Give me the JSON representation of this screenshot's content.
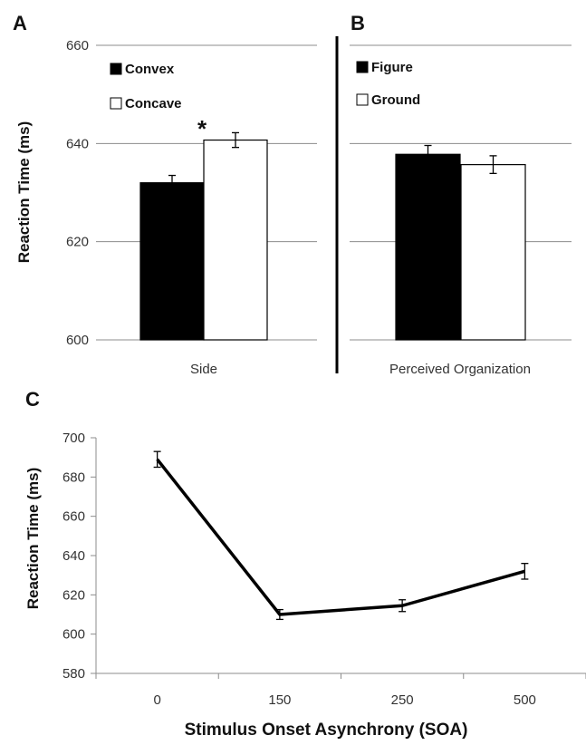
{
  "panels": {
    "a": "A",
    "b": "B",
    "c": "C"
  },
  "significance_marker": "*",
  "chart_data": [
    {
      "panel": "A",
      "type": "bar",
      "categories": [
        "Side"
      ],
      "series": [
        {
          "name": "Convex",
          "values": [
            632
          ],
          "error": [
            1.5
          ],
          "color": "#000000"
        },
        {
          "name": "Concave",
          "values": [
            640.7
          ],
          "error": [
            1.5
          ],
          "color": "#ffffff"
        }
      ],
      "ylabel": "Reaction Time (ms)",
      "ylim": [
        600,
        660
      ],
      "yticks": [
        600,
        620,
        640,
        660
      ],
      "grid": true,
      "legend": "top-left",
      "annotations": [
        "*"
      ]
    },
    {
      "panel": "B",
      "type": "bar",
      "categories": [
        "Perceived Organization"
      ],
      "series": [
        {
          "name": "Figure",
          "values": [
            637.8
          ],
          "error": [
            1.8
          ],
          "color": "#000000"
        },
        {
          "name": "Ground",
          "values": [
            635.7
          ],
          "error": [
            1.8
          ],
          "color": "#ffffff"
        }
      ],
      "ylim": [
        600,
        660
      ],
      "yticks": [
        600,
        620,
        640,
        660
      ],
      "grid": true,
      "legend": "top-left"
    },
    {
      "panel": "C",
      "type": "line",
      "categories": [
        "0",
        "150",
        "250",
        "500"
      ],
      "series": [
        {
          "values": [
            689,
            610,
            614.5,
            632
          ],
          "error": [
            4,
            2.5,
            3,
            4
          ],
          "color": "#000000"
        }
      ],
      "xlabel": "Stimulus Onset Asynchrony (SOA)",
      "ylabel": "Reaction Time (ms)",
      "ylim": [
        580,
        700
      ],
      "yticks": [
        580,
        600,
        620,
        640,
        660,
        680,
        700
      ],
      "grid": false
    }
  ]
}
